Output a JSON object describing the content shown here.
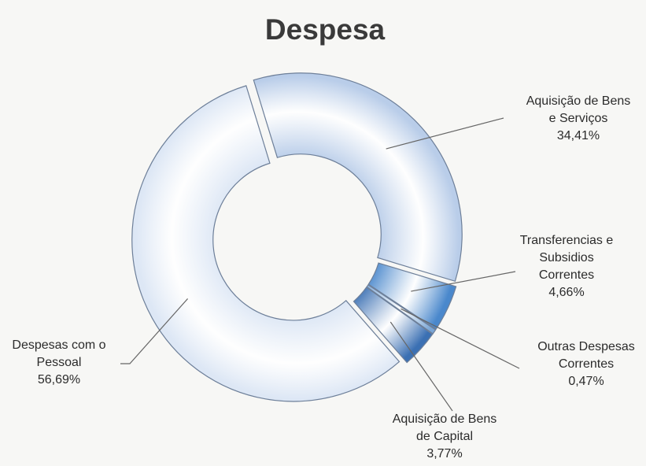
{
  "chart_data": {
    "type": "donut",
    "title": "Despesa",
    "categories": [
      "Aquisição de Bens e Serviços",
      "Transferencias e Subsidios Correntes",
      "Outras Despesas Correntes",
      "Aquisição de Bens de Capital",
      "Despesas com o Pessoal"
    ],
    "values": [
      34.41,
      4.66,
      0.47,
      3.77,
      56.69
    ],
    "value_labels": [
      "34,41%",
      "4,66%",
      "0,47%",
      "3,77%",
      "56,69%"
    ],
    "colors": [
      "#b9cde9",
      "#4a88cc",
      "#7aa6d6",
      "#3b70b3",
      "#dde7f5"
    ]
  }
}
